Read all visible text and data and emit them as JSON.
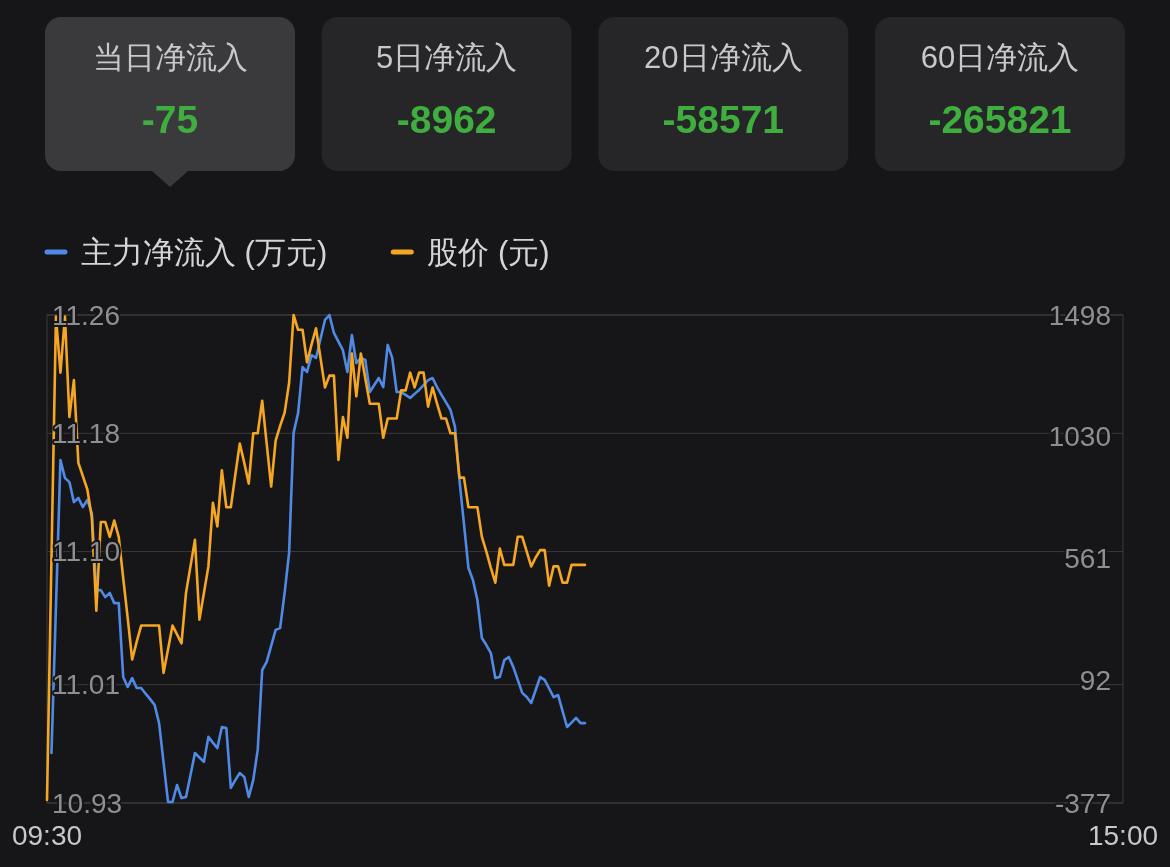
{
  "chart_data": [
    {
      "type": "other",
      "categories": [
        "当日净流入",
        "5日净流入",
        "20日净流入",
        "60日净流入"
      ],
      "values": [
        -75,
        -8962,
        -58571,
        -265821
      ],
      "data_labels": true
    },
    {
      "type": "line",
      "legend": "top left",
      "grid": "y",
      "marker": "none",
      "line_style": "solid",
      "categories": [
        "09:30",
        null,
        null,
        null,
        null,
        null,
        null,
        null,
        null,
        null,
        null,
        null,
        null,
        null,
        null,
        null,
        null,
        null,
        null,
        null,
        null,
        null,
        null,
        null,
        null,
        null,
        null,
        null,
        null,
        null,
        null,
        null,
        null,
        null,
        null,
        null,
        null,
        null,
        null,
        null,
        null,
        null,
        null,
        null,
        null,
        null,
        null,
        null,
        null,
        null,
        null,
        null,
        null,
        null,
        null,
        null,
        null,
        null,
        null,
        null,
        null,
        null,
        null,
        null,
        null,
        null,
        null,
        null,
        null,
        null,
        null,
        null,
        null,
        null,
        null,
        null,
        null,
        null,
        null,
        null,
        null,
        null,
        null,
        null,
        null,
        null,
        null,
        null,
        null,
        null,
        null,
        null,
        null,
        null,
        null,
        null,
        null,
        null,
        null,
        null,
        null,
        null,
        null,
        null,
        null,
        null,
        null,
        null,
        null,
        null,
        null,
        null,
        null,
        null,
        null,
        null,
        null,
        null,
        null,
        null,
        null,
        null,
        null,
        null,
        null,
        null,
        null,
        null,
        null,
        null,
        null,
        null,
        null,
        null,
        null,
        null,
        null,
        null,
        null,
        null,
        null,
        null,
        null,
        null,
        null,
        null,
        null,
        null,
        null,
        null,
        null,
        null,
        null,
        null,
        null,
        null,
        null,
        null,
        null,
        null,
        null,
        null,
        null,
        null,
        null,
        null,
        null,
        null,
        null,
        null,
        null,
        null,
        null,
        null,
        null,
        null,
        null,
        null,
        null,
        null,
        null,
        null,
        null,
        null,
        null,
        null,
        null,
        null,
        null,
        null,
        null,
        null,
        null,
        null,
        null,
        null,
        null,
        null,
        null,
        null,
        null,
        null,
        null,
        null,
        null,
        null,
        null,
        null,
        null,
        null,
        null,
        null,
        null,
        null,
        null,
        null,
        null,
        null,
        null,
        null,
        null,
        null,
        null,
        null,
        null,
        null,
        null,
        null,
        null,
        null,
        null,
        null,
        null,
        null,
        null,
        null,
        null,
        null,
        null,
        null,
        "15:00"
      ],
      "ylim": [
        10.93,
        11.26
      ],
      "yticks": [
        10.93,
        11.01,
        {
          "value": 11.1,
          "label": "11.10"
        },
        11.18,
        11.26
      ],
      "y2lim": [
        -377,
        1498
      ],
      "y2ticks": [
        -377,
        92,
        561,
        1030,
        1498
      ],
      "series": [
        {
          "name": "主力净流入 (万元)",
          "color": "#4f8ae6",
          "axis": "y2",
          "values": [
            null,
            -185,
            378,
            941,
            872,
            856,
            779,
            795,
            760,
            787,
            737,
            441,
            441,
            414,
            430,
            391,
            391,
            107,
            69,
            103,
            65,
            65,
            43,
            22,
            0,
            -70,
            -222,
            -373,
            -373,
            -308,
            -358,
            -354,
            -270,
            -185,
            -202,
            -219,
            -123,
            -145,
            -166,
            -85,
            -89,
            -319,
            -289,
            -262,
            -277,
            -354,
            -289,
            -173,
            134,
            165,
            227,
            288,
            295,
            430,
            584,
            1045,
            1121,
            1298,
            1279,
            1344,
            1333,
            1406,
            1479,
            1498,
            1429,
            1396,
            1363,
            1279,
            1421,
            1313,
            1333,
            1325,
            1202,
            1229,
            1256,
            1221,
            1383,
            1333,
            1202,
            1202,
            1191,
            1179,
            1195,
            1210,
            1229,
            1248,
            1256,
            1221,
            1191,
            1162,
            1133,
            1068,
            864,
            695,
            526,
            480,
            403,
            257,
            230,
            199,
            103,
            107,
            172,
            184,
            146,
            96,
            46,
            30,
            7,
            57,
            107,
            96,
            63,
            30,
            38,
            -24,
            -85,
            -68,
            -50,
            -70,
            -70,
            null,
            null,
            null,
            null,
            null,
            null,
            null,
            null,
            null,
            null,
            null,
            null,
            null,
            null,
            null,
            null,
            null,
            null,
            null,
            null,
            null,
            null,
            null,
            null,
            null,
            null,
            null,
            null,
            null,
            null,
            null,
            null,
            null,
            null,
            null,
            null,
            null,
            null,
            null,
            null,
            null,
            null,
            null,
            null,
            null,
            null,
            null,
            null,
            null,
            null,
            null,
            null,
            null,
            null,
            null,
            null,
            null,
            null,
            null,
            null,
            null,
            null,
            null,
            null,
            null,
            null,
            null,
            null,
            null,
            null,
            null,
            null,
            null,
            null,
            null,
            null,
            null,
            null,
            null,
            null,
            null,
            null,
            null,
            null,
            null,
            null,
            null,
            null,
            null,
            null,
            null,
            null,
            null,
            null,
            null,
            null,
            null,
            null,
            null,
            null,
            null,
            null,
            null,
            null,
            null,
            null,
            null,
            null,
            null,
            null,
            null,
            null,
            null,
            null,
            null,
            null,
            null,
            null,
            null,
            null
          ]
        },
        {
          "name": "股价 (元)",
          "color": "#f5a623",
          "axis": "y",
          "values": [
            10.932,
            11.096,
            11.259,
            11.221,
            11.259,
            11.191,
            11.216,
            11.16,
            11.151,
            11.142,
            11.123,
            11.06,
            11.12,
            11.12,
            11.11,
            11.121,
            11.11,
            11.082,
            11.055,
            11.027,
            11.039,
            11.05,
            11.05,
            11.05,
            11.05,
            11.05,
            11.018,
            11.034,
            11.05,
            11.044,
            11.038,
            11.072,
            11.09,
            11.108,
            11.054,
            11.072,
            11.09,
            11.133,
            11.117,
            11.155,
            11.13,
            11.13,
            11.152,
            11.173,
            11.16,
            11.146,
            11.18,
            11.18,
            11.202,
            11.173,
            11.144,
            11.175,
            11.185,
            11.194,
            11.214,
            11.26,
            11.25,
            11.25,
            11.228,
            11.24,
            11.251,
            11.231,
            11.211,
            11.219,
            11.219,
            11.162,
            11.191,
            11.177,
            11.234,
            11.205,
            11.234,
            11.217,
            11.2,
            11.2,
            11.2,
            11.177,
            11.19,
            11.19,
            11.19,
            11.209,
            11.209,
            11.221,
            11.211,
            11.221,
            11.221,
            11.198,
            11.211,
            11.2,
            11.19,
            11.19,
            11.18,
            11.18,
            11.15,
            11.15,
            11.13,
            11.13,
            11.13,
            11.11,
            11.1,
            11.089,
            11.079,
            11.102,
            11.091,
            11.091,
            11.091,
            11.11,
            11.11,
            11.1,
            11.09,
            11.096,
            11.101,
            11.101,
            11.077,
            11.09,
            11.09,
            11.079,
            11.079,
            11.091,
            11.091,
            11.091,
            11.091,
            null,
            null,
            null,
            null,
            null,
            null,
            null,
            null,
            null,
            null,
            null,
            null,
            null,
            null,
            null,
            null,
            null,
            null,
            null,
            null,
            null,
            null,
            null,
            null,
            null,
            null,
            null,
            null,
            null,
            null,
            null,
            null,
            null,
            null,
            null,
            null,
            null,
            null,
            null,
            null,
            null,
            null,
            null,
            null,
            null,
            null,
            null,
            null,
            null,
            null,
            null,
            null,
            null,
            null,
            null,
            null,
            null,
            null,
            null,
            null,
            null,
            null,
            null,
            null,
            null,
            null,
            null,
            null,
            null,
            null,
            null,
            null,
            null,
            null,
            null,
            null,
            null,
            null,
            null,
            null,
            null,
            null,
            null,
            null,
            null,
            null,
            null,
            null,
            null,
            null,
            null,
            null,
            null,
            null,
            null,
            null,
            null,
            null,
            null,
            null,
            null,
            null,
            null,
            null,
            null,
            null,
            null,
            null,
            null,
            null,
            null,
            null,
            null,
            null,
            null,
            null,
            null,
            null,
            null,
            null
          ]
        }
      ]
    }
  ]
}
